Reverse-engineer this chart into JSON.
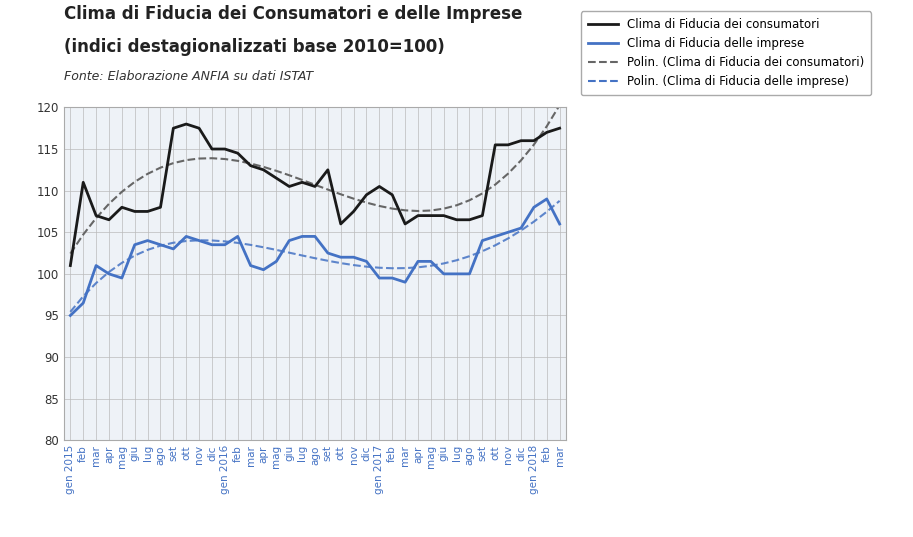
{
  "title_line1": "Clima di Fiducia dei Consumatori e delle Imprese",
  "title_line2": "(indici destagionalizzati base 2010=100)",
  "fonte": "Fonte: Elaborazione ANFIA su dati ISTAT",
  "title_fontsize": 12,
  "fonte_fontsize": 9,
  "background_color": "#ffffff",
  "grid_color": "#bbbbbb",
  "plot_bg_color": "#eef2f7",
  "consumer_color": "#1a1a1a",
  "imprese_color": "#4472c4",
  "trend_consumer_color": "#666666",
  "trend_imprese_color": "#4472c4",
  "ylim": [
    80,
    120
  ],
  "yticks": [
    80,
    85,
    90,
    95,
    100,
    105,
    110,
    115,
    120
  ],
  "x_labels": [
    "gen 2015",
    "feb",
    "mar",
    "apr",
    "mag",
    "giu",
    "lug",
    "ago",
    "set",
    "ott",
    "nov",
    "dic",
    "gen 2016",
    "feb",
    "mar",
    "apr",
    "mag",
    "giu",
    "lug",
    "ago",
    "set",
    "ott",
    "nov",
    "dic",
    "gen 2017",
    "feb",
    "mar",
    "apr",
    "mag",
    "giu",
    "lug",
    "ago",
    "set",
    "ott",
    "nov",
    "dic",
    "gen 2018",
    "feb",
    "mar"
  ],
  "consumer_values": [
    101.0,
    111.0,
    107.0,
    106.5,
    108.0,
    107.5,
    107.5,
    108.0,
    117.5,
    118.0,
    117.5,
    115.0,
    115.0,
    114.5,
    113.0,
    112.5,
    111.5,
    110.5,
    111.0,
    110.5,
    112.5,
    106.0,
    107.5,
    109.5,
    110.5,
    109.5,
    106.0,
    107.0,
    107.0,
    107.0,
    106.5,
    106.5,
    107.0,
    115.5,
    115.5,
    116.0,
    116.0,
    117.0,
    117.5
  ],
  "imprese_values": [
    95.0,
    96.5,
    101.0,
    100.0,
    99.5,
    103.5,
    104.0,
    103.5,
    103.0,
    104.5,
    104.0,
    103.5,
    103.5,
    104.5,
    101.0,
    100.5,
    101.5,
    104.0,
    104.5,
    104.5,
    102.5,
    102.0,
    102.0,
    101.5,
    99.5,
    99.5,
    99.0,
    101.5,
    101.5,
    100.0,
    100.0,
    100.0,
    104.0,
    104.5,
    105.0,
    105.5,
    108.0,
    109.0,
    106.0
  ],
  "legend_labels": [
    "Clima di Fiducia dei consumatori",
    "Clima di Fiducia delle imprese",
    "Polin. (Clima di Fiducia dei consumatori)",
    "Polin. (Clima di Fiducia delle imprese)"
  ]
}
